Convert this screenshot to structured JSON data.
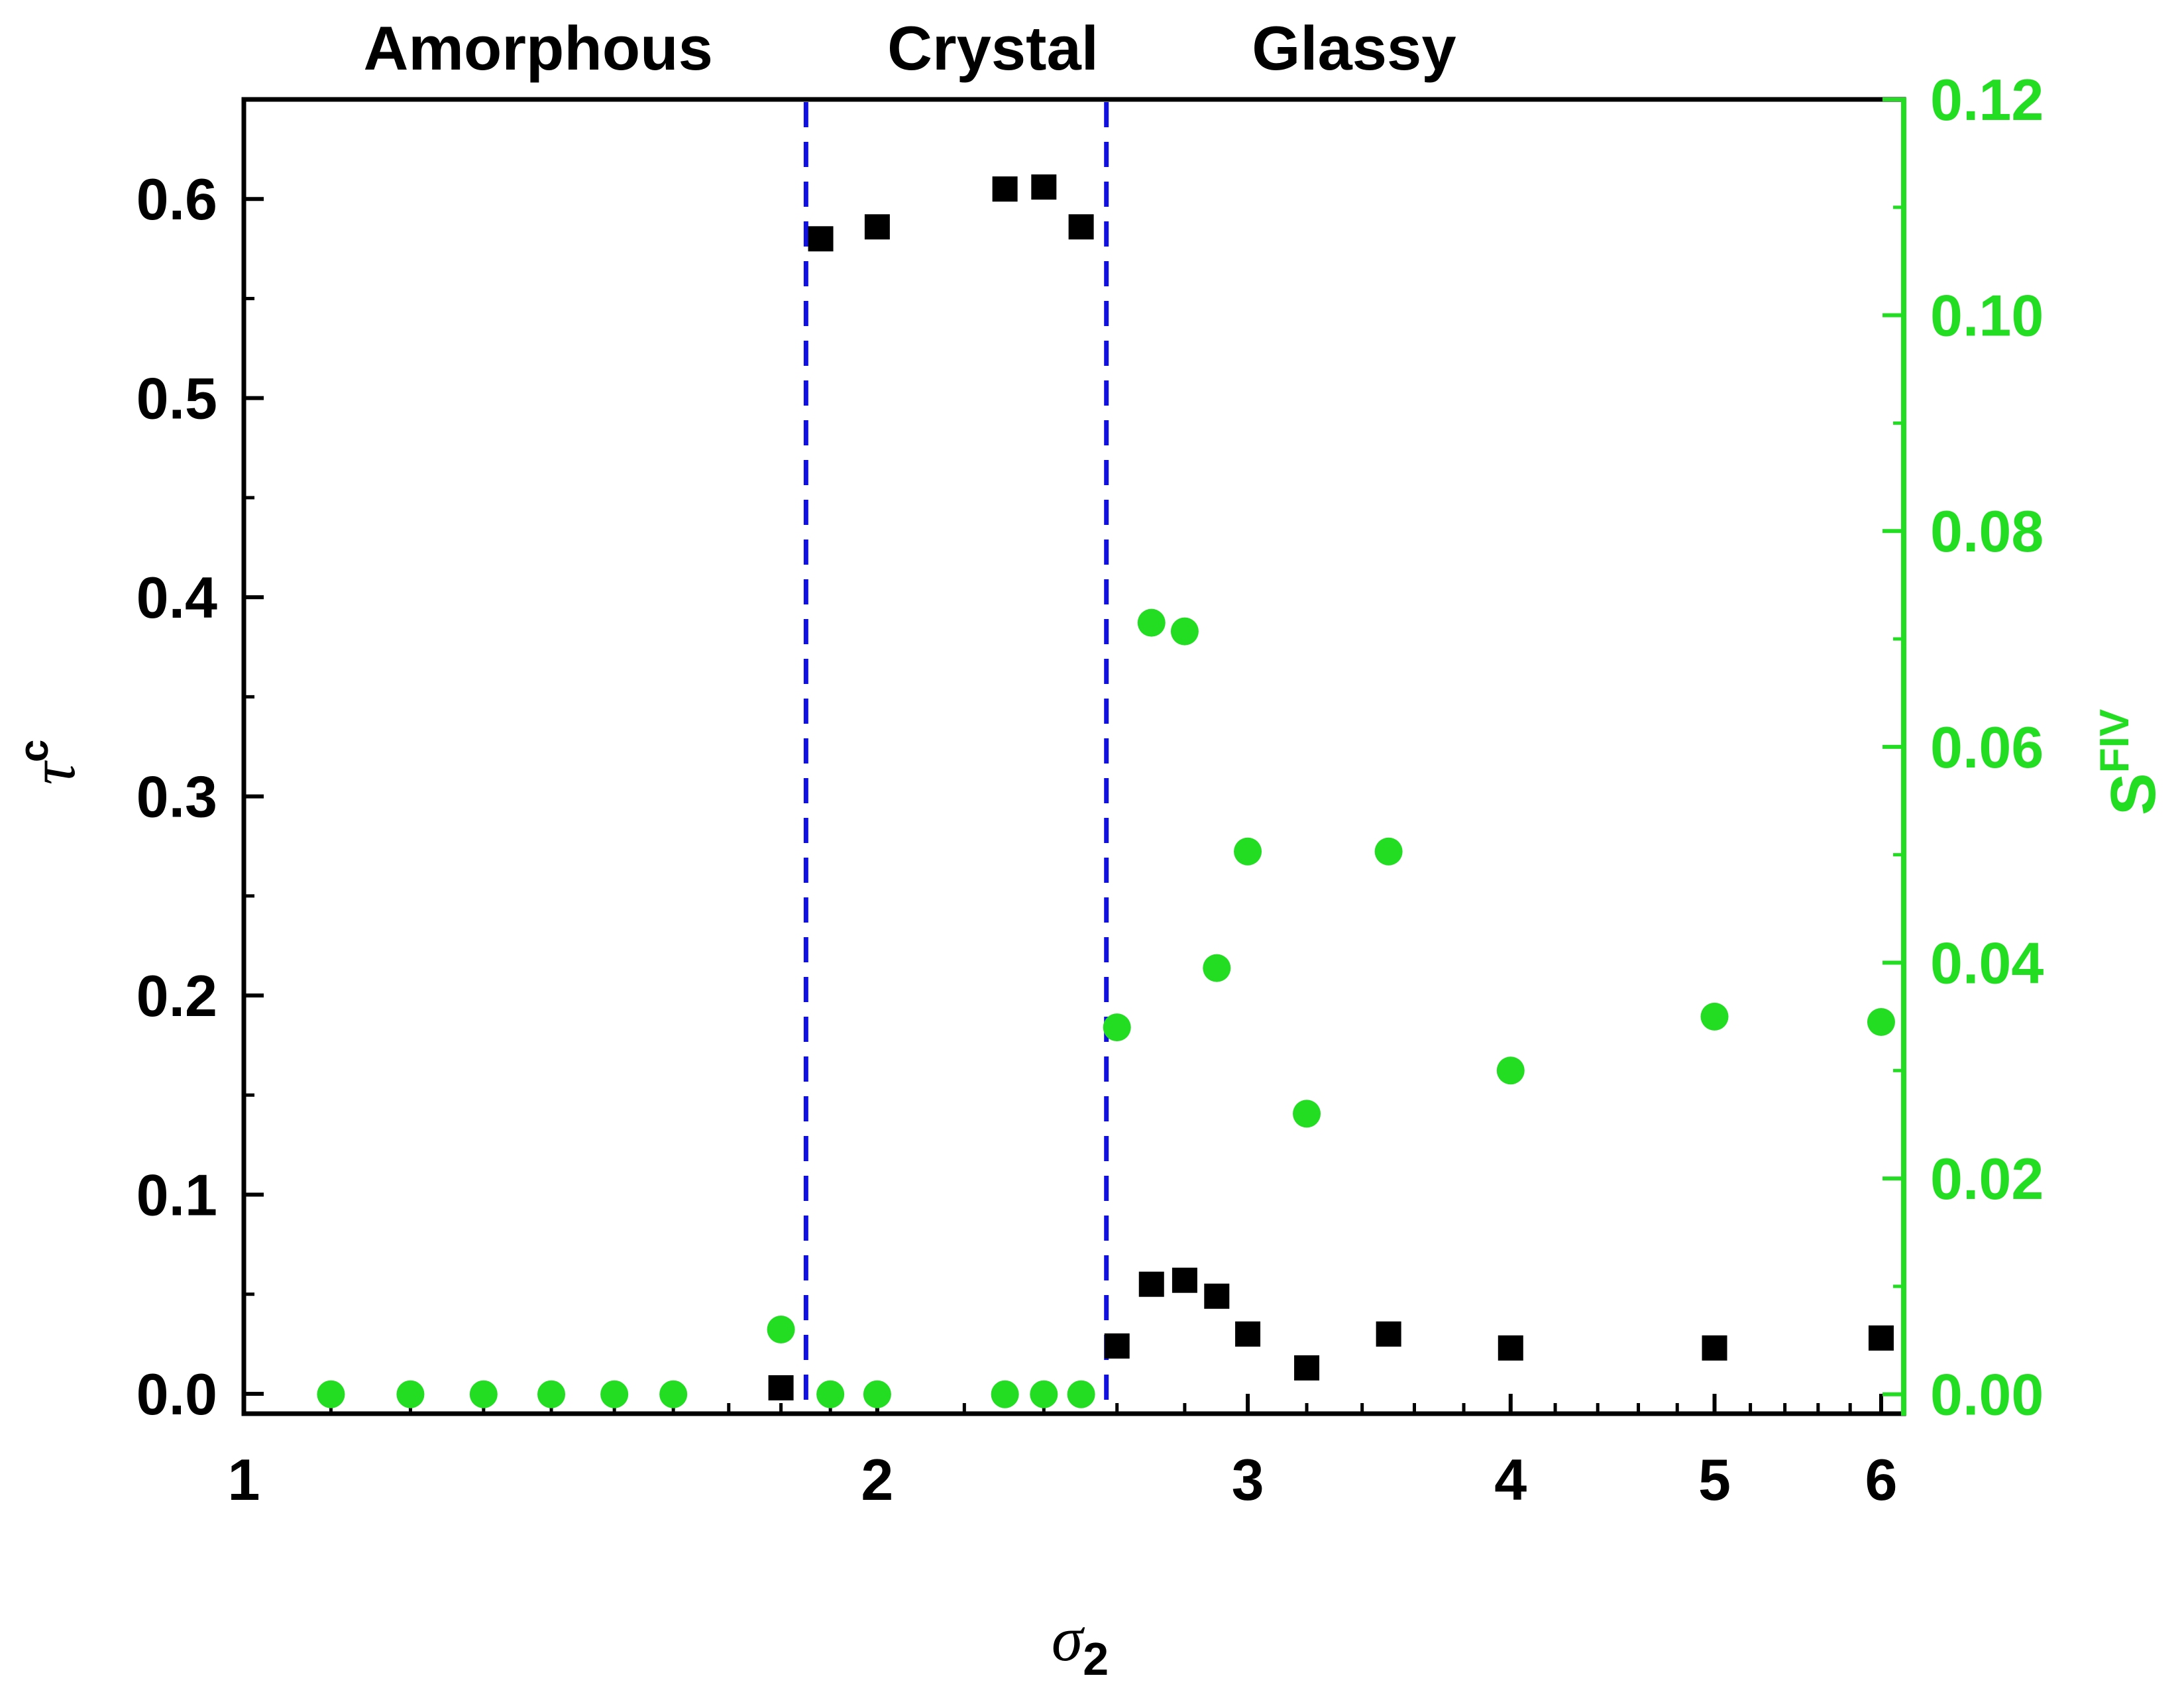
{
  "chart_data": {
    "type": "scatter",
    "x_scale": "log",
    "xlim": [
      1,
      6.15
    ],
    "x_ticks": [
      1,
      2,
      3,
      4,
      5,
      6
    ],
    "x_tick_labels": [
      "1",
      "2",
      "3",
      "4",
      "5",
      "6"
    ],
    "xlabel": {
      "symbol": "σ",
      "subscript": "2"
    },
    "y_left": {
      "label": {
        "symbol": "τ",
        "superscript": "c"
      },
      "ylim": [
        -0.01,
        0.65
      ],
      "ticks": [
        0.0,
        0.1,
        0.2,
        0.3,
        0.4,
        0.5,
        0.6
      ],
      "tick_labels": [
        "0.0",
        "0.1",
        "0.2",
        "0.3",
        "0.4",
        "0.5",
        "0.6"
      ],
      "color": "#000000"
    },
    "y_right": {
      "label": {
        "base": "S",
        "superscript": "FIV"
      },
      "ylim": [
        -0.0018,
        0.12
      ],
      "ticks": [
        0.0,
        0.02,
        0.04,
        0.06,
        0.08,
        0.1,
        0.12
      ],
      "tick_labels": [
        "0.00",
        "0.02",
        "0.04",
        "0.06",
        "0.08",
        "0.10",
        "0.12"
      ],
      "color": "#22dd22"
    },
    "regions": [
      {
        "label": "Amorphous",
        "center_x": 1.38
      },
      {
        "label": "Crystal",
        "center_x": 2.27
      },
      {
        "label": "Glassy",
        "center_x": 3.37
      }
    ],
    "boundaries": {
      "x": [
        1.85,
        2.57
      ],
      "color": "#1010e0",
      "style": "dashed"
    },
    "series": [
      {
        "name": "τc",
        "axis": "left",
        "marker": "square",
        "color": "#000000",
        "points": [
          {
            "x": 1.8,
            "y": 0.003
          },
          {
            "x": 1.88,
            "y": 0.58
          },
          {
            "x": 2.0,
            "y": 0.586
          },
          {
            "x": 2.3,
            "y": 0.605
          },
          {
            "x": 2.4,
            "y": 0.606
          },
          {
            "x": 2.5,
            "y": 0.586
          },
          {
            "x": 2.6,
            "y": 0.024
          },
          {
            "x": 2.7,
            "y": 0.055
          },
          {
            "x": 2.8,
            "y": 0.057
          },
          {
            "x": 2.9,
            "y": 0.049
          },
          {
            "x": 3.0,
            "y": 0.03
          },
          {
            "x": 3.2,
            "y": 0.013
          },
          {
            "x": 3.5,
            "y": 0.03
          },
          {
            "x": 4.0,
            "y": 0.023
          },
          {
            "x": 5.0,
            "y": 0.023
          },
          {
            "x": 6.0,
            "y": 0.028
          }
        ]
      },
      {
        "name": "SFIV",
        "axis": "right",
        "marker": "circle",
        "color": "#22dd22",
        "points": [
          {
            "x": 1.1,
            "y": 0.0
          },
          {
            "x": 1.2,
            "y": 0.0
          },
          {
            "x": 1.3,
            "y": 0.0
          },
          {
            "x": 1.4,
            "y": 0.0
          },
          {
            "x": 1.5,
            "y": 0.0
          },
          {
            "x": 1.6,
            "y": 0.0
          },
          {
            "x": 1.8,
            "y": 0.006
          },
          {
            "x": 1.9,
            "y": 0.0
          },
          {
            "x": 2.0,
            "y": 0.0
          },
          {
            "x": 2.3,
            "y": 0.0
          },
          {
            "x": 2.4,
            "y": 0.0
          },
          {
            "x": 2.5,
            "y": 0.0
          },
          {
            "x": 2.6,
            "y": 0.034
          },
          {
            "x": 2.7,
            "y": 0.0715
          },
          {
            "x": 2.8,
            "y": 0.0707
          },
          {
            "x": 2.9,
            "y": 0.0395
          },
          {
            "x": 3.0,
            "y": 0.0503
          },
          {
            "x": 3.2,
            "y": 0.026
          },
          {
            "x": 3.5,
            "y": 0.0503
          },
          {
            "x": 4.0,
            "y": 0.03
          },
          {
            "x": 5.0,
            "y": 0.035
          },
          {
            "x": 6.0,
            "y": 0.0345
          }
        ]
      }
    ]
  }
}
